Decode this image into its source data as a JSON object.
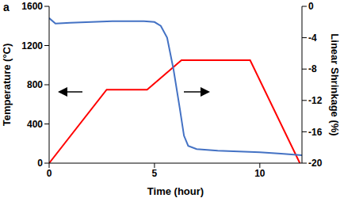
{
  "chart_data": {
    "type": "line",
    "panel_label": "a",
    "x_label": "Time (hour)",
    "y_label": "Temperature (°C)",
    "y2_label": "Linear Shrinkage (%)",
    "xlim": [
      0,
      12
    ],
    "xticks": [
      0,
      5,
      10
    ],
    "ylim": [
      0,
      1600
    ],
    "yticks": [
      0,
      400,
      800,
      1200,
      1600
    ],
    "y2lim": [
      -20,
      0
    ],
    "y2ticks": [
      0,
      -4,
      -8,
      -12,
      -16,
      -20
    ],
    "series": [
      {
        "color": "#ff0000",
        "x": [
          0,
          2.73,
          4.65,
          6.28,
          9.54,
          11.9
        ],
        "values": [
          0,
          750,
          750,
          1050,
          1050,
          0
        ]
      },
      {
        "color": "#4472c4",
        "axis": "y2",
        "x": [
          0,
          0.3,
          1,
          3,
          4.5,
          5,
          5.3,
          5.6,
          5.9,
          6.2,
          6.4,
          6.6,
          7,
          8,
          9,
          10,
          11,
          12
        ],
        "values": [
          -1.5,
          -2.2,
          -2.1,
          -1.9,
          -1.9,
          -2.0,
          -2.5,
          -4,
          -8,
          -13,
          -16.5,
          -17.8,
          -18.2,
          -18.4,
          -18.5,
          -18.6,
          -18.8,
          -19.0
        ]
      }
    ]
  }
}
